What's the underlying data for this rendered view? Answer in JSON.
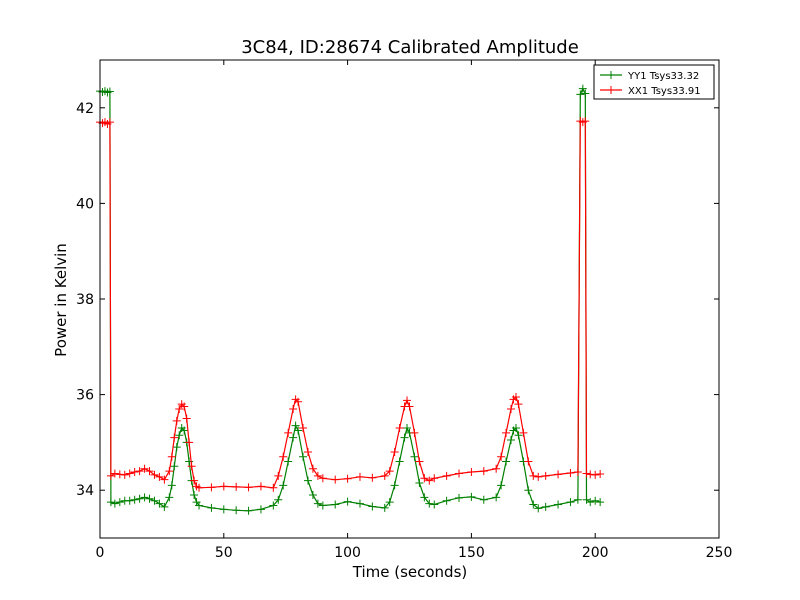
{
  "chart_data": {
    "type": "line",
    "title": "3C84, ID:28674 Calibrated Amplitude",
    "xlabel": "Time (seconds)",
    "ylabel": "Power in Kelvin",
    "xlim": [
      0,
      250
    ],
    "ylim": [
      33,
      43
    ],
    "x_ticks": [
      0,
      50,
      100,
      150,
      200,
      250
    ],
    "y_ticks": [
      34,
      36,
      38,
      40,
      42
    ],
    "grid": false,
    "legend_position": "top-right",
    "marker": "plus",
    "series": [
      {
        "name": "YY1 Tsys33.32",
        "color": "#008000",
        "points": [
          [
            0,
            42.35
          ],
          [
            1,
            42.33
          ],
          [
            2,
            42.35
          ],
          [
            3,
            42.32
          ],
          [
            4,
            42.34
          ],
          [
            4.4,
            33.75
          ],
          [
            6,
            33.72
          ],
          [
            8,
            33.75
          ],
          [
            10,
            33.78
          ],
          [
            12,
            33.78
          ],
          [
            14,
            33.8
          ],
          [
            16,
            33.82
          ],
          [
            18,
            33.85
          ],
          [
            20,
            33.82
          ],
          [
            22,
            33.78
          ],
          [
            24,
            33.72
          ],
          [
            26,
            33.65
          ],
          [
            28,
            33.85
          ],
          [
            29,
            34.1
          ],
          [
            30,
            34.5
          ],
          [
            31,
            34.9
          ],
          [
            32,
            35.15
          ],
          [
            33,
            35.3
          ],
          [
            34,
            35.25
          ],
          [
            35,
            35.0
          ],
          [
            36,
            34.6
          ],
          [
            37,
            34.2
          ],
          [
            38,
            33.9
          ],
          [
            39,
            33.75
          ],
          [
            40,
            33.68
          ],
          [
            45,
            33.63
          ],
          [
            50,
            33.6
          ],
          [
            55,
            33.58
          ],
          [
            60,
            33.57
          ],
          [
            65,
            33.6
          ],
          [
            70,
            33.68
          ],
          [
            72,
            33.8
          ],
          [
            74,
            34.1
          ],
          [
            76,
            34.6
          ],
          [
            78,
            35.1
          ],
          [
            79,
            35.35
          ],
          [
            80,
            35.25
          ],
          [
            82,
            34.7
          ],
          [
            84,
            34.2
          ],
          [
            86,
            33.9
          ],
          [
            88,
            33.72
          ],
          [
            90,
            33.68
          ],
          [
            95,
            33.7
          ],
          [
            100,
            33.76
          ],
          [
            105,
            33.72
          ],
          [
            110,
            33.66
          ],
          [
            115,
            33.63
          ],
          [
            117,
            33.75
          ],
          [
            119,
            34.1
          ],
          [
            121,
            34.6
          ],
          [
            123,
            35.1
          ],
          [
            124,
            35.3
          ],
          [
            125,
            35.2
          ],
          [
            127,
            34.7
          ],
          [
            129,
            34.15
          ],
          [
            131,
            33.85
          ],
          [
            133,
            33.72
          ],
          [
            135,
            33.7
          ],
          [
            140,
            33.78
          ],
          [
            145,
            33.84
          ],
          [
            150,
            33.86
          ],
          [
            155,
            33.8
          ],
          [
            160,
            33.85
          ],
          [
            162,
            34.1
          ],
          [
            164,
            34.6
          ],
          [
            166,
            35.05
          ],
          [
            167,
            35.25
          ],
          [
            168,
            35.3
          ],
          [
            169,
            35.15
          ],
          [
            171,
            34.6
          ],
          [
            173,
            34.0
          ],
          [
            175,
            33.7
          ],
          [
            177,
            33.62
          ],
          [
            180,
            33.65
          ],
          [
            185,
            33.7
          ],
          [
            190,
            33.75
          ],
          [
            193,
            33.8
          ],
          [
            194,
            42.28
          ],
          [
            195,
            42.4
          ],
          [
            196,
            42.3
          ],
          [
            196.5,
            33.8
          ],
          [
            198,
            33.75
          ],
          [
            200,
            33.78
          ],
          [
            202,
            33.75
          ]
        ]
      },
      {
        "name": "XX1 Tsys33.91",
        "color": "#ff0000",
        "points": [
          [
            0,
            41.7
          ],
          [
            1,
            41.68
          ],
          [
            2,
            41.7
          ],
          [
            3,
            41.66
          ],
          [
            4,
            41.7
          ],
          [
            4.4,
            34.3
          ],
          [
            6,
            34.35
          ],
          [
            8,
            34.33
          ],
          [
            10,
            34.32
          ],
          [
            12,
            34.35
          ],
          [
            14,
            34.38
          ],
          [
            16,
            34.4
          ],
          [
            18,
            34.45
          ],
          [
            20,
            34.4
          ],
          [
            22,
            34.32
          ],
          [
            24,
            34.28
          ],
          [
            26,
            34.22
          ],
          [
            28,
            34.4
          ],
          [
            29,
            34.7
          ],
          [
            30,
            35.1
          ],
          [
            31,
            35.45
          ],
          [
            32,
            35.7
          ],
          [
            33,
            35.8
          ],
          [
            34,
            35.75
          ],
          [
            35,
            35.5
          ],
          [
            36,
            35.0
          ],
          [
            37,
            34.5
          ],
          [
            38,
            34.2
          ],
          [
            39,
            34.08
          ],
          [
            40,
            34.05
          ],
          [
            45,
            34.06
          ],
          [
            50,
            34.08
          ],
          [
            55,
            34.07
          ],
          [
            60,
            34.06
          ],
          [
            65,
            34.08
          ],
          [
            70,
            34.05
          ],
          [
            72,
            34.3
          ],
          [
            74,
            34.7
          ],
          [
            76,
            35.2
          ],
          [
            78,
            35.7
          ],
          [
            79,
            35.9
          ],
          [
            80,
            35.85
          ],
          [
            82,
            35.3
          ],
          [
            84,
            34.8
          ],
          [
            86,
            34.45
          ],
          [
            88,
            34.3
          ],
          [
            90,
            34.25
          ],
          [
            95,
            34.22
          ],
          [
            100,
            34.24
          ],
          [
            105,
            34.28
          ],
          [
            110,
            34.26
          ],
          [
            115,
            34.3
          ],
          [
            117,
            34.4
          ],
          [
            119,
            34.8
          ],
          [
            121,
            35.3
          ],
          [
            123,
            35.75
          ],
          [
            124,
            35.88
          ],
          [
            125,
            35.75
          ],
          [
            127,
            35.2
          ],
          [
            129,
            34.6
          ],
          [
            131,
            34.25
          ],
          [
            133,
            34.2
          ],
          [
            135,
            34.25
          ],
          [
            140,
            34.3
          ],
          [
            145,
            34.35
          ],
          [
            150,
            34.38
          ],
          [
            155,
            34.4
          ],
          [
            160,
            34.45
          ],
          [
            162,
            34.7
          ],
          [
            164,
            35.2
          ],
          [
            166,
            35.7
          ],
          [
            167,
            35.9
          ],
          [
            168,
            35.95
          ],
          [
            169,
            35.8
          ],
          [
            171,
            35.2
          ],
          [
            173,
            34.6
          ],
          [
            175,
            34.3
          ],
          [
            177,
            34.28
          ],
          [
            180,
            34.3
          ],
          [
            185,
            34.33
          ],
          [
            190,
            34.36
          ],
          [
            193,
            34.38
          ],
          [
            194,
            41.72
          ],
          [
            195,
            41.7
          ],
          [
            196,
            41.72
          ],
          [
            196.5,
            34.35
          ],
          [
            198,
            34.33
          ],
          [
            200,
            34.32
          ],
          [
            202,
            34.34
          ]
        ]
      }
    ]
  }
}
